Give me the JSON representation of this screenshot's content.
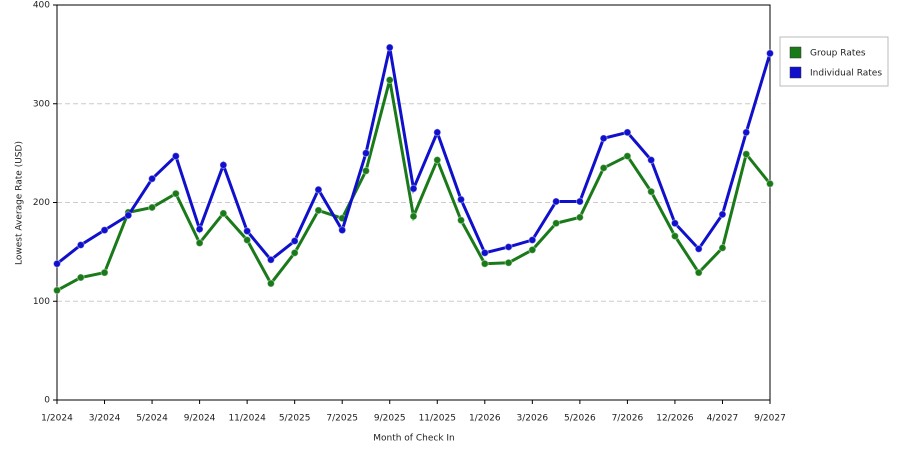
{
  "chart_data": {
    "type": "line",
    "x_label": "Month of Check In",
    "y_label": "Lowest Average Rate (USD)",
    "categories": [
      "1/2024",
      null,
      "3/2024",
      null,
      "5/2024",
      null,
      "9/2024",
      null,
      "11/2024",
      null,
      "5/2025",
      null,
      "7/2025",
      null,
      "9/2025",
      null,
      "11/2025",
      null,
      "1/2026",
      null,
      "3/2026",
      null,
      "5/2026",
      null,
      "7/2026",
      null,
      "12/2026",
      null,
      "4/2027",
      null,
      "9/2027"
    ],
    "series": [
      {
        "name": "Group Rates",
        "color": "#1a7a1a",
        "values": [
          111,
          124,
          129,
          190,
          195,
          209,
          159,
          189,
          162,
          118,
          149,
          192,
          184,
          232,
          324,
          186,
          243,
          182,
          138,
          139,
          152,
          179,
          185,
          235,
          247,
          211,
          166,
          129,
          154,
          249,
          219
        ]
      },
      {
        "name": "Individual Rates",
        "color": "#1010cc",
        "values": [
          138,
          157,
          172,
          187,
          224,
          247,
          173,
          238,
          171,
          142,
          161,
          213,
          172,
          250,
          357,
          214,
          271,
          203,
          149,
          155,
          162,
          201,
          201,
          265,
          271,
          243,
          179,
          153,
          188,
          271,
          351
        ]
      }
    ],
    "ylim": [
      0,
      400
    ],
    "yticks": [
      0,
      100,
      200,
      300,
      400
    ],
    "grid": true,
    "legend": "right"
  }
}
